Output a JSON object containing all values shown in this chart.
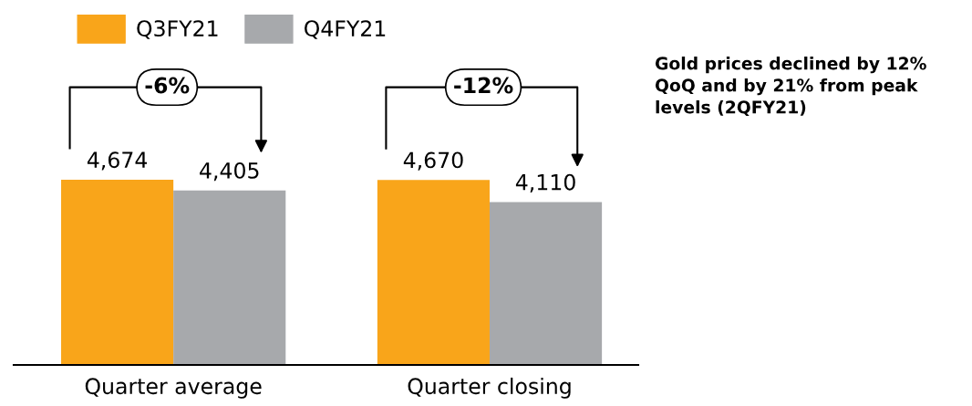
{
  "chart_data": {
    "type": "bar",
    "categories": [
      "Quarter average",
      "Quarter closing"
    ],
    "series": [
      {
        "name": "Q3FY21",
        "color": "#f9a51a",
        "values": [
          4674,
          4670
        ],
        "value_labels": [
          "4,674",
          "4,670"
        ]
      },
      {
        "name": "Q4FY21",
        "color": "#a7a9ac",
        "values": [
          4405,
          4110
        ],
        "value_labels": [
          "4,405",
          "4,110"
        ]
      }
    ],
    "annotations": [
      "-6%",
      "-12%",
      "Gold prices declined by 12% QoQ and by 21% from peak levels (2QFY21)"
    ],
    "legend": "top left",
    "grid": false
  }
}
